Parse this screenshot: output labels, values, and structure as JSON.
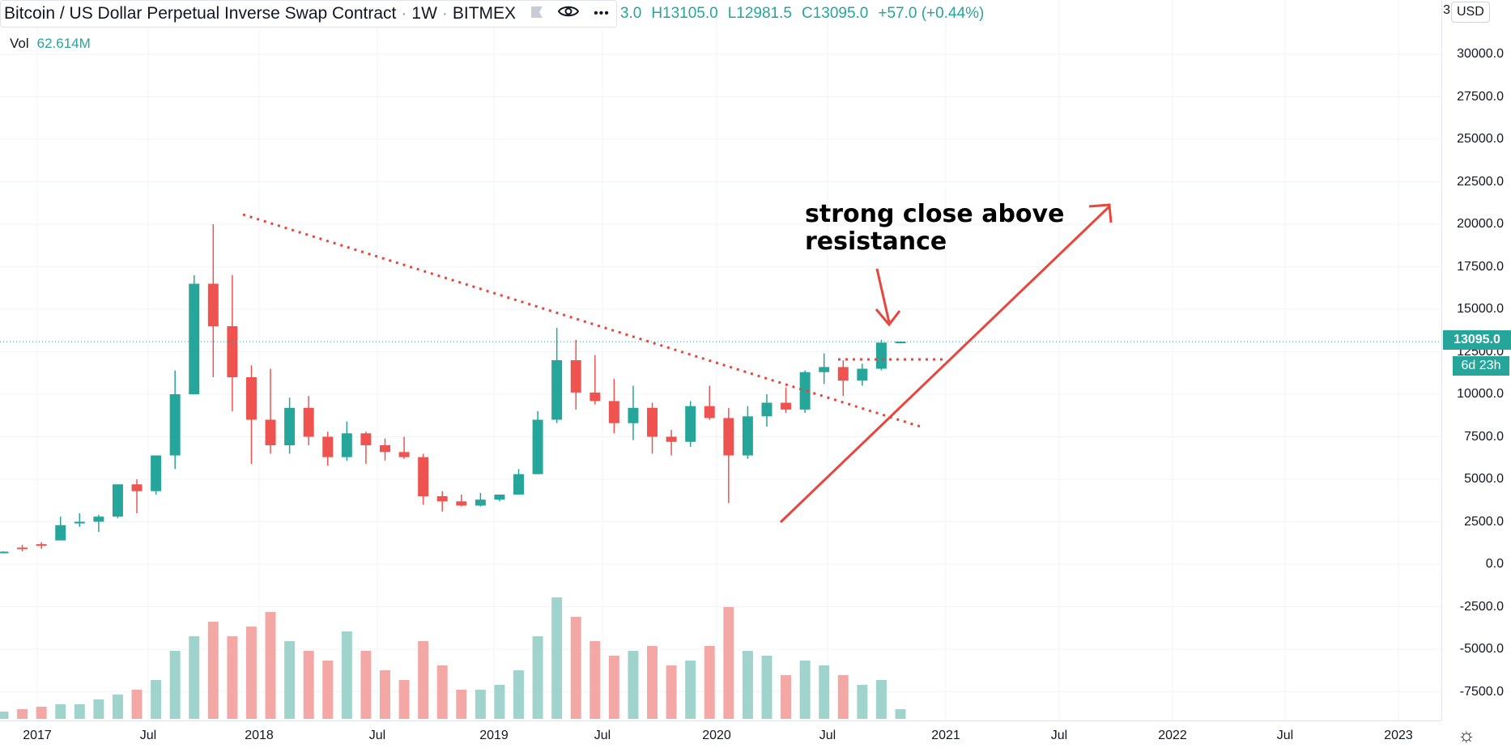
{
  "header": {
    "symbol_title": "Bitcoin / US Dollar Perpetual Inverse Swap Contract",
    "interval": "1W",
    "exchange": "BITMEX",
    "visible_ohlc": {
      "open_fragment": "3.0",
      "high": "H13105.0",
      "low": "L12981.5",
      "close": "C13095.0",
      "change": "+57.0 (+0.44%)"
    },
    "icons": [
      "flag-icon",
      "eye-icon",
      "more-icon"
    ]
  },
  "volume_label": {
    "label": "Vol",
    "value": "62.614M"
  },
  "currency_button": "USD",
  "price_axis": {
    "top_partial_label": "3",
    "labels": [
      "30000.0",
      "27500.0",
      "25000.0",
      "22500.0",
      "20000.0",
      "17500.0",
      "15000.0",
      "12500.0",
      "10000.0",
      "7500.0",
      "5000.0",
      "2500.0",
      "0.0",
      "-2500.0",
      "-5000.0",
      "-7500.0"
    ],
    "current_price": "13095.0",
    "countdown": "6d 23h"
  },
  "time_axis": {
    "labels": [
      "2017",
      "Jul",
      "2018",
      "Jul",
      "2019",
      "Jul",
      "2020",
      "Jul",
      "2021",
      "Jul",
      "2022",
      "Jul",
      "2023"
    ]
  },
  "annotation": {
    "line1": "strong close above",
    "line2": "resistance"
  },
  "colors": {
    "up": "#26a69a",
    "down": "#ef5350",
    "drawing": "#e8453c",
    "vol_up": "#9fd3cc",
    "vol_down": "#f4a8a6"
  },
  "chart_data": {
    "type": "candlestick",
    "interval": "1W",
    "x_range": [
      "2016-11",
      "2023-03"
    ],
    "ylim": [
      -9000,
      32000
    ],
    "grid": true,
    "last_price": 13095.0,
    "series": [
      {
        "period": "2016-11",
        "open": 700,
        "high": 760,
        "low": 690,
        "close": 740,
        "volume": 1.5
      },
      {
        "period": "2017-01",
        "open": 980,
        "high": 1140,
        "low": 760,
        "close": 920,
        "volume": 2
      },
      {
        "period": "2017-03",
        "open": 1180,
        "high": 1300,
        "low": 900,
        "close": 1080,
        "volume": 2.5
      },
      {
        "period": "2017-05",
        "open": 1400,
        "high": 2800,
        "low": 1400,
        "close": 2300,
        "volume": 3
      },
      {
        "period": "2017-06",
        "open": 2400,
        "high": 3000,
        "low": 2200,
        "close": 2500,
        "volume": 3
      },
      {
        "period": "2017-07",
        "open": 2500,
        "high": 2900,
        "low": 1900,
        "close": 2800,
        "volume": 4
      },
      {
        "period": "2017-08",
        "open": 2800,
        "high": 4700,
        "low": 2700,
        "close": 4700,
        "volume": 5
      },
      {
        "period": "2017-09",
        "open": 4700,
        "high": 5000,
        "low": 3000,
        "close": 4300,
        "volume": 6
      },
      {
        "period": "2017-10",
        "open": 4300,
        "high": 6400,
        "low": 4100,
        "close": 6400,
        "volume": 8
      },
      {
        "period": "2017-11",
        "open": 6400,
        "high": 11400,
        "low": 5600,
        "close": 10000,
        "volume": 14
      },
      {
        "period": "2017-12-a",
        "open": 10000,
        "high": 17000,
        "low": 10000,
        "close": 16500,
        "volume": 17
      },
      {
        "period": "2017-12-b",
        "open": 16500,
        "high": 20000,
        "low": 11000,
        "close": 14000,
        "volume": 20
      },
      {
        "period": "2018-01",
        "open": 14000,
        "high": 17000,
        "low": 9000,
        "close": 11000,
        "volume": 17
      },
      {
        "period": "2018-02",
        "open": 11000,
        "high": 11700,
        "low": 5900,
        "close": 8500,
        "volume": 19
      },
      {
        "period": "2018-03",
        "open": 8500,
        "high": 11500,
        "low": 6500,
        "close": 7000,
        "volume": 22
      },
      {
        "period": "2018-04",
        "open": 7000,
        "high": 9800,
        "low": 6500,
        "close": 9200,
        "volume": 16
      },
      {
        "period": "2018-05",
        "open": 9200,
        "high": 9900,
        "low": 7000,
        "close": 7500,
        "volume": 14
      },
      {
        "period": "2018-06",
        "open": 7500,
        "high": 7800,
        "low": 5800,
        "close": 6300,
        "volume": 12
      },
      {
        "period": "2018-07",
        "open": 6300,
        "high": 8400,
        "low": 6100,
        "close": 7700,
        "volume": 18
      },
      {
        "period": "2018-08",
        "open": 7700,
        "high": 7800,
        "low": 5900,
        "close": 7000,
        "volume": 14
      },
      {
        "period": "2018-09",
        "open": 7000,
        "high": 7400,
        "low": 6100,
        "close": 6600,
        "volume": 10
      },
      {
        "period": "2018-10",
        "open": 6600,
        "high": 7500,
        "low": 6200,
        "close": 6300,
        "volume": 8
      },
      {
        "period": "2018-11",
        "open": 6300,
        "high": 6500,
        "low": 3500,
        "close": 4000,
        "volume": 16
      },
      {
        "period": "2018-12",
        "open": 4000,
        "high": 4300,
        "low": 3100,
        "close": 3700,
        "volume": 11
      },
      {
        "period": "2019-01",
        "open": 3700,
        "high": 4100,
        "low": 3400,
        "close": 3450,
        "volume": 6
      },
      {
        "period": "2019-02",
        "open": 3450,
        "high": 4200,
        "low": 3400,
        "close": 3800,
        "volume": 6
      },
      {
        "period": "2019-03",
        "open": 3800,
        "high": 4100,
        "low": 3700,
        "close": 4100,
        "volume": 7
      },
      {
        "period": "2019-04",
        "open": 4100,
        "high": 5600,
        "low": 4100,
        "close": 5300,
        "volume": 10
      },
      {
        "period": "2019-05",
        "open": 5300,
        "high": 9000,
        "low": 5300,
        "close": 8500,
        "volume": 17
      },
      {
        "period": "2019-06",
        "open": 8500,
        "high": 13900,
        "low": 8300,
        "close": 12000,
        "volume": 25
      },
      {
        "period": "2019-07",
        "open": 12000,
        "high": 13200,
        "low": 9100,
        "close": 10100,
        "volume": 21
      },
      {
        "period": "2019-08",
        "open": 10100,
        "high": 12300,
        "low": 9400,
        "close": 9600,
        "volume": 16
      },
      {
        "period": "2019-09",
        "open": 9600,
        "high": 10900,
        "low": 7700,
        "close": 8300,
        "volume": 13
      },
      {
        "period": "2019-10",
        "open": 8300,
        "high": 10500,
        "low": 7300,
        "close": 9200,
        "volume": 14
      },
      {
        "period": "2019-11",
        "open": 9200,
        "high": 9500,
        "low": 6500,
        "close": 7500,
        "volume": 15
      },
      {
        "period": "2019-12",
        "open": 7500,
        "high": 7900,
        "low": 6400,
        "close": 7200,
        "volume": 11
      },
      {
        "period": "2020-01",
        "open": 7200,
        "high": 9600,
        "low": 6900,
        "close": 9300,
        "volume": 12
      },
      {
        "period": "2020-02",
        "open": 9300,
        "high": 10500,
        "low": 8500,
        "close": 8600,
        "volume": 15
      },
      {
        "period": "2020-03",
        "open": 8600,
        "high": 9200,
        "low": 3600,
        "close": 6400,
        "volume": 23
      },
      {
        "period": "2020-04",
        "open": 6400,
        "high": 9300,
        "low": 6200,
        "close": 8700,
        "volume": 14
      },
      {
        "period": "2020-05",
        "open": 8700,
        "high": 10000,
        "low": 8100,
        "close": 9500,
        "volume": 13
      },
      {
        "period": "2020-06",
        "open": 9500,
        "high": 10400,
        "low": 8900,
        "close": 9100,
        "volume": 9
      },
      {
        "period": "2020-07",
        "open": 9100,
        "high": 11400,
        "low": 8900,
        "close": 11300,
        "volume": 12
      },
      {
        "period": "2020-08",
        "open": 11300,
        "high": 12400,
        "low": 10600,
        "close": 11600,
        "volume": 11
      },
      {
        "period": "2020-09",
        "open": 11600,
        "high": 12000,
        "low": 9900,
        "close": 10800,
        "volume": 9
      },
      {
        "period": "2020-10-a",
        "open": 10800,
        "high": 11800,
        "low": 10500,
        "close": 11500,
        "volume": 7
      },
      {
        "period": "2020-10-b",
        "open": 11500,
        "high": 13200,
        "low": 11400,
        "close": 13038,
        "volume": 8
      },
      {
        "period": "2020-10-c",
        "open": 13038,
        "high": 13105,
        "low": 12981.5,
        "close": 13095,
        "volume": 2
      }
    ]
  }
}
